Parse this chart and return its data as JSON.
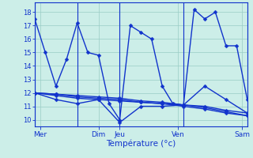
{
  "background_color": "#cceee8",
  "grid_color": "#99ccc5",
  "line_color": "#1133cc",
  "markersize": 2.5,
  "linewidth": 1.0,
  "xlabel": "Température (°c)",
  "ylim": [
    9.5,
    18.7
  ],
  "yticks": [
    10,
    11,
    12,
    13,
    14,
    15,
    16,
    17,
    18
  ],
  "xlim": [
    0,
    20
  ],
  "x_tick_positions": [
    0.5,
    6,
    8,
    13.5,
    19.5
  ],
  "x_tick_labels": [
    "Mer",
    "Dim",
    "Jeu",
    "Ven",
    "Sam"
  ],
  "x_vlines": [
    0,
    4,
    8,
    14,
    20
  ],
  "series": {
    "zigzag": {
      "x": [
        0,
        1,
        2,
        3,
        4,
        5,
        6,
        7,
        8,
        9,
        10,
        11,
        12,
        13,
        14,
        15,
        16,
        17,
        18,
        19,
        20
      ],
      "y": [
        17.5,
        15.0,
        12.5,
        14.5,
        17.2,
        15.0,
        14.8,
        11.2,
        10.0,
        17.0,
        16.5,
        16.0,
        12.5,
        11.2,
        11.1,
        18.2,
        17.5,
        18.0,
        15.5,
        15.5,
        11.5
      ]
    },
    "low": {
      "x": [
        0,
        2,
        4,
        6,
        8,
        10,
        12,
        14,
        16,
        18,
        20
      ],
      "y": [
        12.0,
        11.5,
        11.2,
        11.5,
        9.8,
        11.0,
        11.0,
        11.1,
        12.5,
        11.5,
        10.5
      ]
    },
    "flat1": {
      "x": [
        0,
        2,
        4,
        6,
        8,
        10,
        12,
        14,
        16,
        18,
        20
      ],
      "y": [
        12.0,
        11.8,
        11.6,
        11.5,
        11.4,
        11.3,
        11.2,
        11.1,
        11.0,
        10.7,
        10.5
      ]
    },
    "flat2": {
      "x": [
        0,
        2,
        4,
        6,
        8,
        10,
        12,
        14,
        16,
        18,
        20
      ],
      "y": [
        12.0,
        11.9,
        11.7,
        11.6,
        11.5,
        11.3,
        11.2,
        11.0,
        10.8,
        10.5,
        10.3
      ]
    },
    "flat3": {
      "x": [
        0,
        2,
        4,
        6,
        8,
        10,
        12,
        14,
        16,
        18,
        20
      ],
      "y": [
        12.0,
        11.9,
        11.8,
        11.7,
        11.6,
        11.4,
        11.3,
        11.1,
        10.9,
        10.6,
        10.3
      ]
    }
  }
}
